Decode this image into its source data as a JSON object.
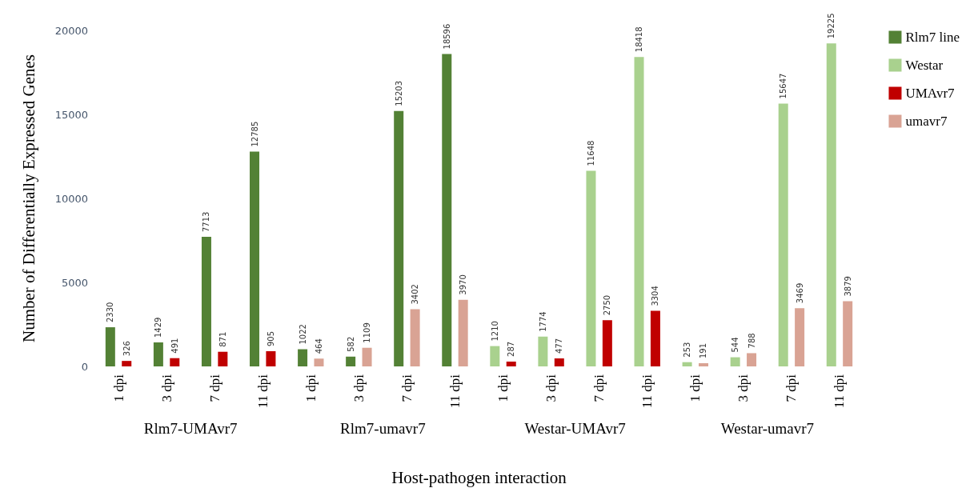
{
  "chart_data": {
    "type": "bar",
    "xlabel": "Host-pathogen interaction",
    "ylabel": "Number of Differentially Expressed Genes",
    "categories": [
      "1 dpi",
      "3 dpi",
      "7 dpi",
      "11 dpi",
      "1 dpi",
      "3 dpi",
      "7 dpi",
      "11 dpi",
      "1 dpi",
      "3 dpi",
      "7 dpi",
      "11 dpi",
      "1 dpi",
      "3 dpi",
      "7 dpi",
      "11 dpi"
    ],
    "series": [
      {
        "name": "Rlm7 line",
        "color": "#538135",
        "values": [
          2330,
          1429,
          7713,
          12785,
          1022,
          582,
          15203,
          18596,
          null,
          null,
          null,
          null,
          null,
          null,
          null,
          null
        ]
      },
      {
        "name": "Westar",
        "color": "#a9d18e",
        "values": [
          null,
          null,
          null,
          null,
          null,
          null,
          null,
          null,
          1210,
          1774,
          11648,
          18418,
          253,
          544,
          15647,
          19225
        ]
      },
      {
        "name": "UMAvr7",
        "color": "#c00000",
        "values": [
          326,
          491,
          871,
          905,
          null,
          null,
          null,
          null,
          287,
          477,
          2750,
          3304,
          null,
          null,
          null,
          null
        ]
      },
      {
        "name": "umavr7",
        "color": "#d9a394",
        "values": [
          null,
          null,
          null,
          null,
          464,
          1109,
          3402,
          3970,
          null,
          null,
          null,
          null,
          191,
          788,
          3469,
          3879
        ]
      }
    ],
    "annotations": [
      "Rlm7-UMAvr7",
      "Rlm7-umavr7",
      "Westar-UMAvr7",
      "Westar-umavr7"
    ],
    "ylim": [
      0,
      20000
    ],
    "yticks": [
      0,
      5000,
      10000,
      15000,
      20000
    ],
    "data_labels": true,
    "grid": false,
    "legend": "top right"
  }
}
